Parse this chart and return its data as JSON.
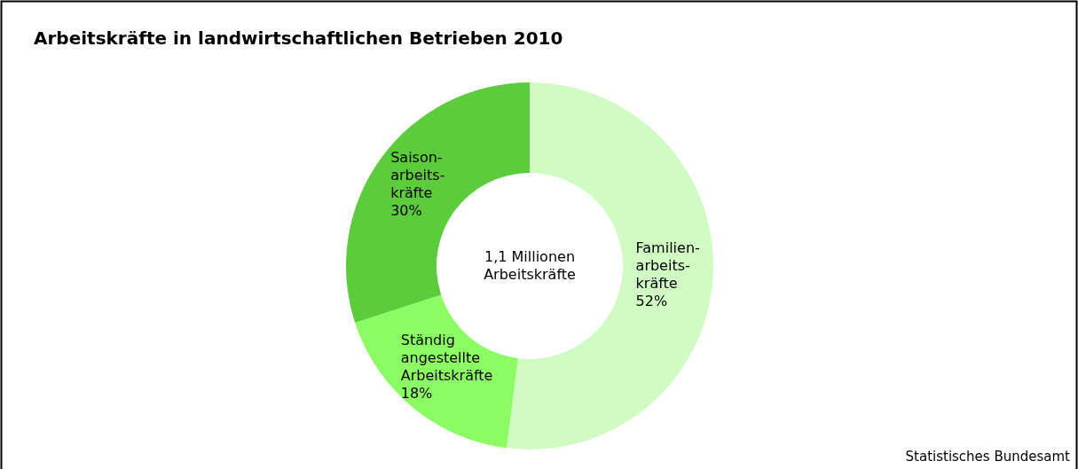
{
  "chart_data": {
    "type": "donut",
    "title": "Arbeitskräfte in landwirtschaftlichen Betrieben 2010",
    "categories": [
      "Familien-\narbeits-\nkräfte",
      "Ständig\nangestellte\nArbeitskräfte",
      "Saison-\narbeits-\nkräfte"
    ],
    "values": [
      52,
      18,
      30
    ],
    "colors": [
      "#d0fcc4",
      "#8cfc64",
      "#5ccc3c"
    ],
    "value_labels": [
      "52%",
      "18%",
      "30%"
    ],
    "legend": false,
    "annotations": [
      "1,1 Millionen\nArbeitskräfte",
      "Statistisches Bundesamt"
    ]
  }
}
